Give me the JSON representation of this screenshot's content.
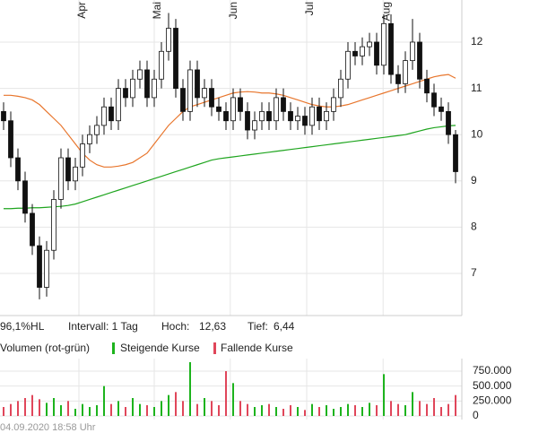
{
  "chart_data": [
    {
      "type": "candlestick",
      "xticks": [
        {
          "value": 10.5,
          "label": "Apr"
        },
        {
          "value": 21,
          "label": "Mai"
        },
        {
          "value": 31.6,
          "label": "Jun"
        },
        {
          "value": 42.25,
          "label": "Jul"
        },
        {
          "value": 52.9,
          "label": "Aug"
        }
      ],
      "open": [
        10.5,
        10.3,
        9.5,
        9.0,
        8.3,
        7.6,
        6.7,
        7.5,
        8.6,
        9.5,
        9.0,
        9.3,
        9.8,
        10.0,
        10.2,
        10.6,
        10.3,
        11.0,
        10.8,
        11.2,
        11.4,
        10.8,
        11.2,
        11.8,
        12.3,
        11.0,
        10.5,
        11.4,
        10.8,
        11.0,
        10.6,
        10.5,
        10.3,
        10.8,
        10.5,
        10.1,
        10.3,
        10.5,
        10.3,
        10.8,
        10.5,
        10.3,
        10.4,
        10.2,
        10.6,
        10.3,
        10.5,
        10.8,
        11.2,
        11.8,
        11.7,
        11.9,
        12.0,
        11.5,
        12.4,
        11.3,
        11.1,
        11.6,
        12.0,
        11.2,
        10.9,
        10.6,
        10.5,
        10.0
      ],
      "high": [
        10.7,
        10.5,
        9.7,
        9.2,
        8.5,
        7.8,
        7.7,
        8.8,
        9.7,
        9.7,
        9.5,
        10.0,
        10.2,
        10.4,
        10.8,
        10.8,
        11.2,
        11.2,
        11.4,
        11.6,
        11.6,
        11.4,
        12.0,
        12.63,
        12.5,
        11.2,
        11.6,
        11.6,
        11.2,
        11.2,
        10.8,
        10.7,
        11.0,
        11.0,
        10.7,
        10.5,
        10.7,
        10.7,
        11.0,
        11.0,
        10.7,
        10.6,
        10.6,
        10.8,
        10.8,
        10.7,
        11.0,
        11.4,
        12.0,
        12.0,
        12.1,
        12.2,
        12.2,
        12.6,
        12.6,
        11.5,
        11.8,
        12.5,
        12.2,
        11.4,
        11.1,
        10.8,
        10.7,
        10.1
      ],
      "low": [
        10.1,
        9.3,
        8.8,
        8.1,
        7.4,
        6.44,
        6.5,
        7.3,
        8.4,
        8.8,
        8.8,
        9.1,
        9.6,
        9.8,
        10.0,
        10.1,
        10.1,
        10.6,
        10.6,
        11.0,
        10.6,
        10.6,
        11.0,
        11.6,
        10.8,
        10.3,
        10.3,
        10.6,
        10.6,
        10.4,
        10.3,
        10.1,
        10.1,
        10.3,
        9.9,
        9.9,
        10.1,
        10.1,
        10.1,
        10.3,
        10.1,
        10.1,
        10.0,
        10.0,
        10.1,
        10.1,
        10.3,
        10.6,
        11.0,
        11.5,
        11.5,
        11.7,
        11.3,
        11.3,
        11.1,
        10.9,
        10.9,
        11.4,
        11.0,
        10.7,
        10.4,
        10.3,
        9.8,
        8.95
      ],
      "close": [
        10.3,
        9.5,
        9.0,
        8.3,
        7.6,
        6.7,
        7.5,
        8.6,
        9.5,
        9.0,
        9.3,
        9.8,
        10.0,
        10.2,
        10.6,
        10.3,
        11.0,
        10.8,
        11.2,
        11.4,
        10.8,
        11.2,
        11.8,
        12.3,
        11.0,
        10.5,
        11.4,
        10.8,
        11.0,
        10.6,
        10.5,
        10.3,
        10.8,
        10.5,
        10.1,
        10.3,
        10.5,
        10.3,
        10.8,
        10.5,
        10.3,
        10.4,
        10.2,
        10.6,
        10.3,
        10.5,
        10.8,
        11.2,
        11.8,
        11.7,
        11.9,
        12.0,
        11.5,
        12.4,
        11.3,
        11.1,
        11.6,
        12.0,
        11.2,
        10.9,
        10.6,
        10.5,
        10.0,
        9.2
      ],
      "series": [
        {
          "color": "#e8762d",
          "values": [
            10.85,
            10.85,
            10.83,
            10.8,
            10.75,
            10.65,
            10.5,
            10.35,
            10.2,
            10.0,
            9.8,
            9.6,
            9.45,
            9.35,
            9.3,
            9.3,
            9.32,
            9.35,
            9.4,
            9.5,
            9.6,
            9.8,
            10.0,
            10.2,
            10.35,
            10.5,
            10.6,
            10.65,
            10.7,
            10.75,
            10.8,
            10.85,
            10.9,
            10.92,
            10.93,
            10.92,
            10.9,
            10.9,
            10.88,
            10.85,
            10.8,
            10.75,
            10.7,
            10.65,
            10.62,
            10.6,
            10.6,
            10.62,
            10.65,
            10.7,
            10.75,
            10.8,
            10.85,
            10.9,
            10.95,
            11.0,
            11.05,
            11.1,
            11.15,
            11.2,
            11.25,
            11.28,
            11.3,
            11.22
          ]
        },
        {
          "color": "#1fa51f",
          "values": [
            8.4,
            8.4,
            8.41,
            8.41,
            8.42,
            8.42,
            8.43,
            8.44,
            8.45,
            8.47,
            8.5,
            8.55,
            8.6,
            8.65,
            8.7,
            8.75,
            8.8,
            8.85,
            8.9,
            8.95,
            9.0,
            9.05,
            9.1,
            9.15,
            9.2,
            9.25,
            9.3,
            9.35,
            9.4,
            9.45,
            9.48,
            9.5,
            9.52,
            9.54,
            9.56,
            9.58,
            9.6,
            9.62,
            9.64,
            9.66,
            9.68,
            9.7,
            9.72,
            9.74,
            9.76,
            9.78,
            9.8,
            9.82,
            9.84,
            9.86,
            9.88,
            9.9,
            9.92,
            9.94,
            9.96,
            9.98,
            10.0,
            10.04,
            10.08,
            10.12,
            10.15,
            10.17,
            10.19,
            10.2
          ]
        }
      ],
      "up_color": "#ffffff",
      "down_color": "#111111",
      "ylim": [
        6.09,
        12.91
      ],
      "yticks": [
        7,
        8,
        9,
        10,
        11,
        12
      ],
      "grid": true
    },
    {
      "type": "bar",
      "title": "Volumen (rot-grün)",
      "legend": [
        {
          "name": "Steigende Kurse",
          "color": "#1db31d"
        },
        {
          "name": "Fallende Kurse",
          "color": "#e0465a"
        }
      ],
      "values": [
        150000,
        200000,
        250000,
        300000,
        350000,
        280000,
        220000,
        300000,
        180000,
        250000,
        120000,
        200000,
        150000,
        180000,
        500000,
        200000,
        250000,
        150000,
        300000,
        200000,
        180000,
        150000,
        250000,
        350000,
        400000,
        250000,
        900000,
        200000,
        300000,
        250000,
        180000,
        750000,
        550000,
        250000,
        200000,
        150000,
        180000,
        200000,
        150000,
        120000,
        180000,
        150000,
        100000,
        200000,
        150000,
        180000,
        120000,
        150000,
        200000,
        180000,
        150000,
        220000,
        180000,
        700000,
        250000,
        200000,
        180000,
        400000,
        250000,
        200000,
        300000,
        150000,
        200000,
        350000
      ],
      "ylim": [
        -60000,
        960000
      ],
      "yticks": [
        0,
        {
          "value": 250000,
          "label": "250.000"
        },
        {
          "value": 500000,
          "label": "500.000"
        },
        {
          "value": 750000,
          "label": "750.000"
        }
      ],
      "grid": true
    }
  ],
  "info": {
    "range": "96,1%HL",
    "interval": "Intervall: 1 Tag",
    "high_label": "Hoch:",
    "high": {
      "value": 12.63,
      "label": "12,63"
    },
    "low_label": "Tief:",
    "low": {
      "value": 6.44,
      "label": "6,44"
    }
  },
  "timestamp": "04.09.2020 18:58 Uhr"
}
